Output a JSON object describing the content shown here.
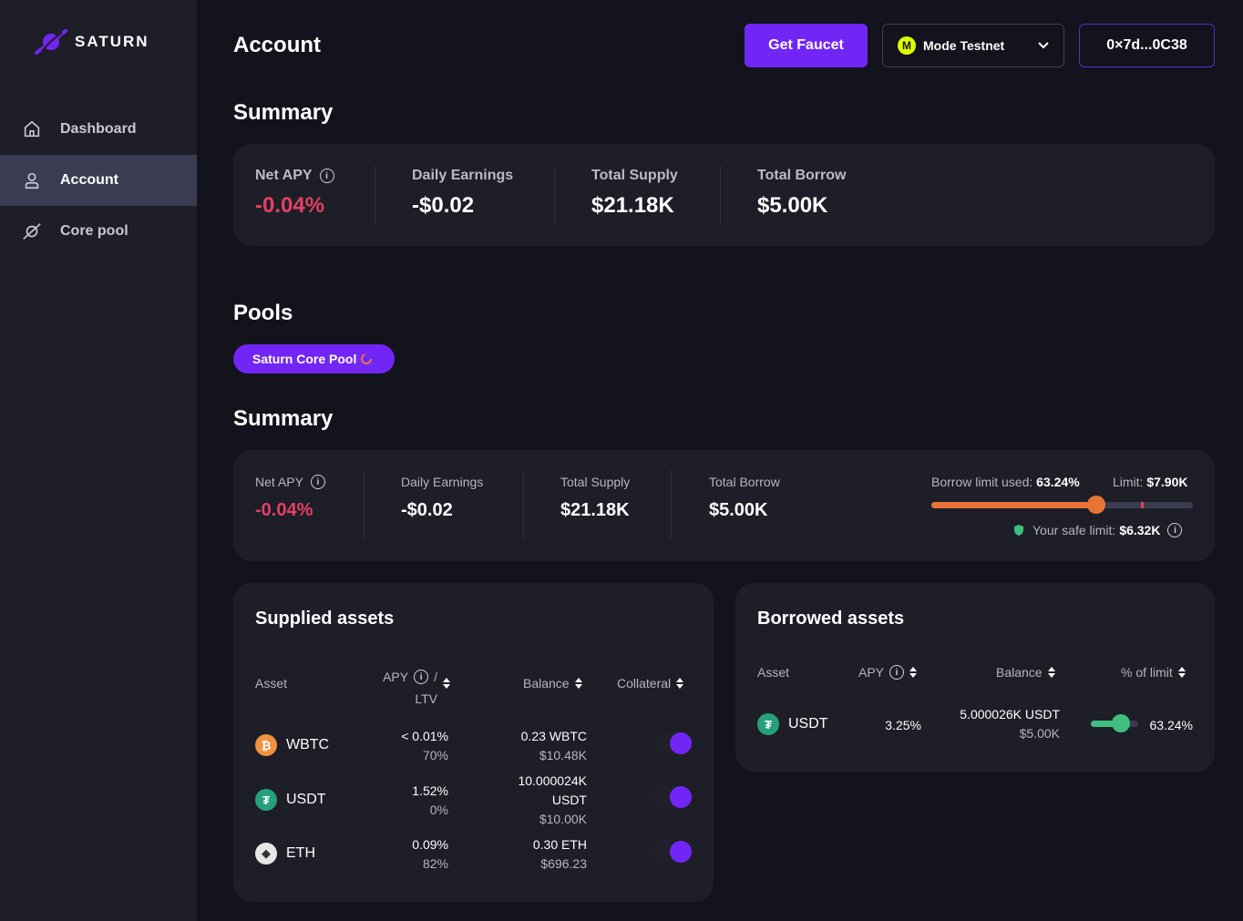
{
  "brand": {
    "name": "SATURN"
  },
  "sidebar": {
    "items": [
      {
        "label": "Dashboard",
        "icon": "home-icon"
      },
      {
        "label": "Account",
        "icon": "user-icon",
        "active": true
      },
      {
        "label": "Core pool",
        "icon": "planet-icon"
      }
    ]
  },
  "header": {
    "title": "Account",
    "faucet_label": "Get Faucet",
    "network": {
      "label": "Mode Testnet",
      "icon_letter": "M"
    },
    "wallet": "0×7d...0C38"
  },
  "account_summary": {
    "title": "Summary",
    "net_apy": {
      "label": "Net APY",
      "value": "-0.04%"
    },
    "daily_earnings": {
      "label": "Daily Earnings",
      "value": "-$0.02"
    },
    "total_supply": {
      "label": "Total Supply",
      "value": "$21.18K"
    },
    "total_borrow": {
      "label": "Total Borrow",
      "value": "$5.00K"
    }
  },
  "pools": {
    "title": "Pools",
    "selected_pool": "Saturn Core Pool"
  },
  "pool_summary": {
    "title": "Summary",
    "net_apy": {
      "label": "Net APY",
      "value": "-0.04%"
    },
    "daily_earnings": {
      "label": "Daily Earnings",
      "value": "-$0.02"
    },
    "total_supply": {
      "label": "Total Supply",
      "value": "$21.18K"
    },
    "total_borrow": {
      "label": "Total Borrow",
      "value": "$5.00K"
    },
    "borrow_limit_used_label": "Borrow limit used:",
    "borrow_limit_used_value": "63.24%",
    "borrow_limit_fraction": 0.6324,
    "safe_limit_fraction": 0.8,
    "limit_label": "Limit:",
    "limit_value": "$7.90K",
    "safe_limit_label": "Your safe limit:",
    "safe_limit_value": "$6.32K"
  },
  "supplied": {
    "title": "Supplied assets",
    "headers": {
      "asset": "Asset",
      "apy": "APY",
      "slash": "/",
      "ltv": "LTV",
      "balance": "Balance",
      "collateral": "Collateral"
    },
    "rows": [
      {
        "symbol": "WBTC",
        "apy": "< 0.01%",
        "ltv": "70%",
        "balance": "0.23 WBTC",
        "balance_usd": "$10.48K",
        "collateral": true,
        "coin_color": "#f09242",
        "coin_glyph": "₿"
      },
      {
        "symbol": "USDT",
        "apy": "1.52%",
        "ltv": "0%",
        "balance_line1": "10.000024K",
        "balance_line2": "USDT",
        "balance_usd": "$10.00K",
        "collateral": true,
        "coin_color": "#26a17b",
        "coin_glyph": "₮"
      },
      {
        "symbol": "ETH",
        "apy": "0.09%",
        "ltv": "82%",
        "balance": "0.30 ETH",
        "balance_usd": "$696.23",
        "collateral": true,
        "coin_color": "#e6e6e6",
        "coin_glyph": "◆"
      }
    ]
  },
  "borrowed": {
    "title": "Borrowed assets",
    "headers": {
      "asset": "Asset",
      "apy": "APY",
      "balance": "Balance",
      "pct_limit": "% of limit"
    },
    "rows": [
      {
        "symbol": "USDT",
        "apy": "3.25%",
        "balance": "5.000026K USDT",
        "balance_usd": "$5.00K",
        "pct_limit": "63.24%",
        "pct_fraction": 0.6324,
        "coin_color": "#26a17b",
        "coin_glyph": "₮"
      }
    ]
  },
  "colors": {
    "accent": "#7226f5",
    "negative": "#e44063",
    "warning": "#e87438",
    "success": "#3fbf7f"
  }
}
